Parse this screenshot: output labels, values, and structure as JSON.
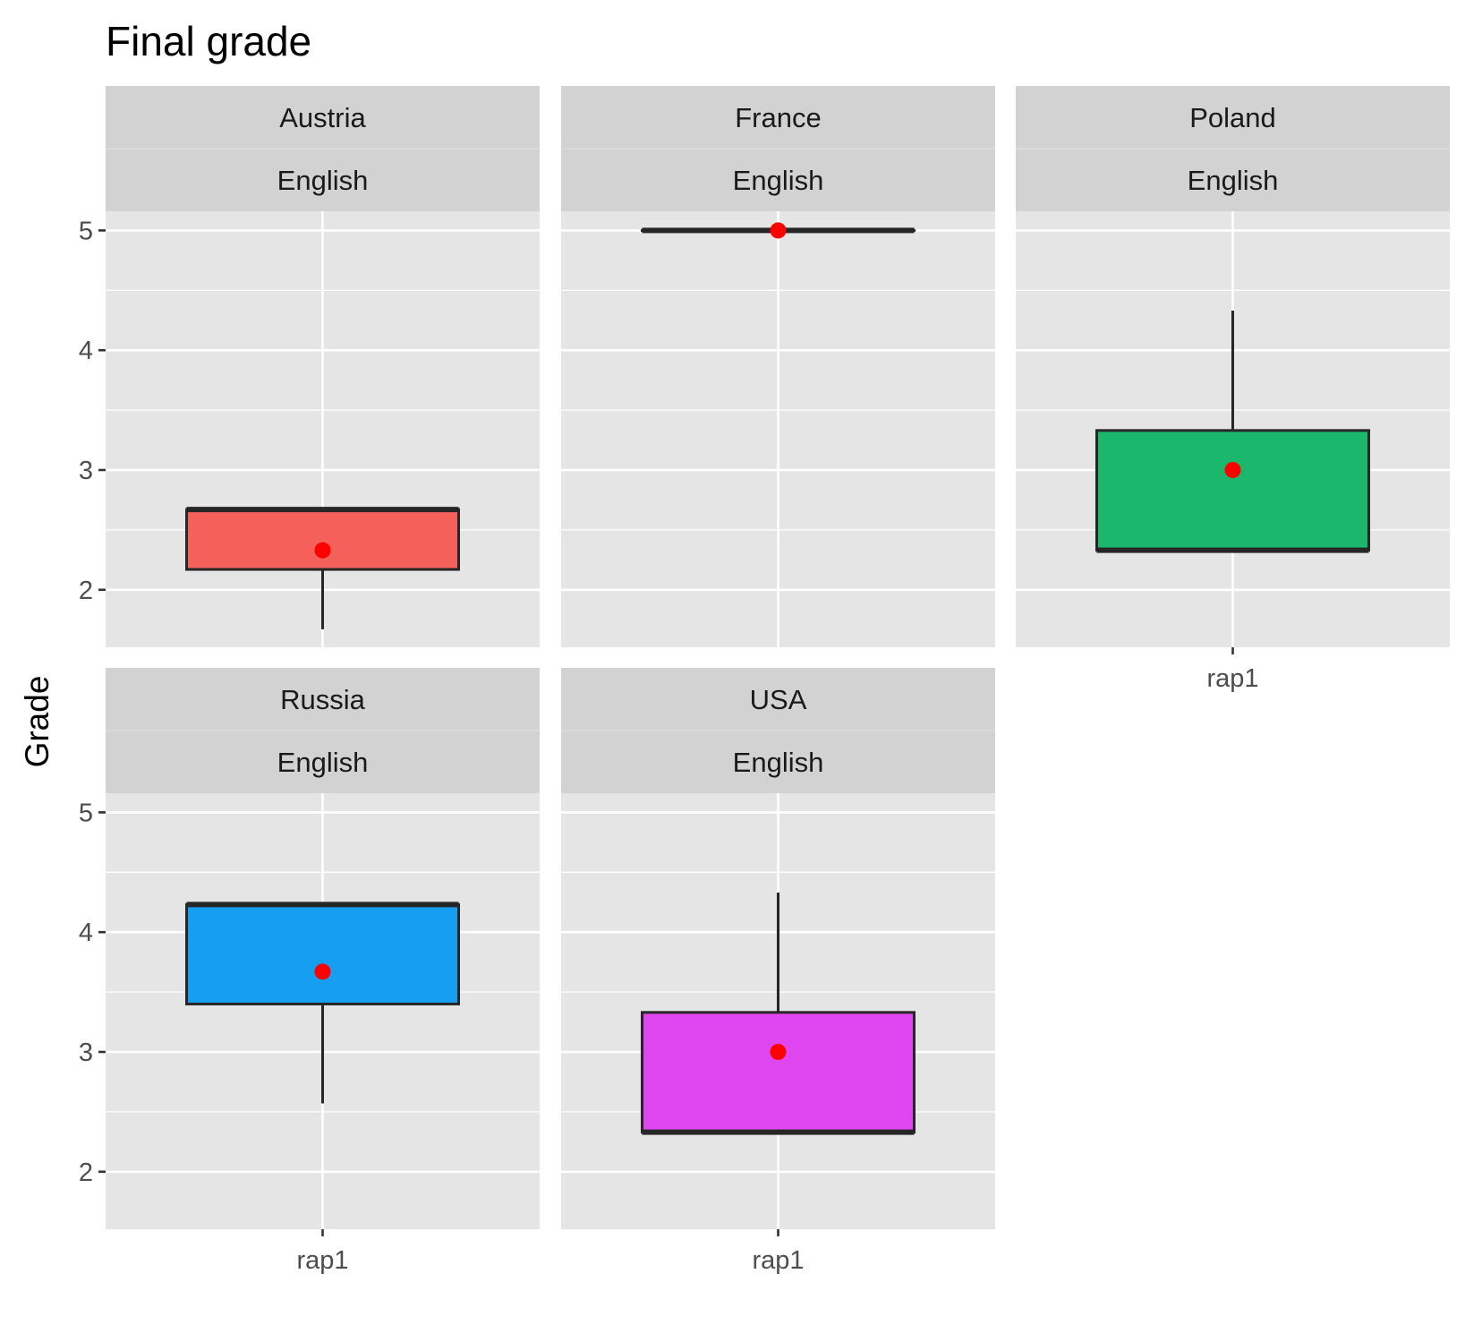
{
  "chart_data": {
    "type": "box",
    "title": "Final grade",
    "ylabel": "Grade",
    "xlabel": "",
    "ylim": [
      1.52,
      5.16
    ],
    "yticks": [
      2,
      3,
      4,
      5
    ],
    "x_category": "rap1",
    "colors": {
      "panel_bg": "#e5e5e5",
      "grid": "#ffffff",
      "strip_bg": "#d2d2d2",
      "mean_point": "#ff0000",
      "box_outline": "#262626"
    },
    "panels": [
      {
        "country": "Austria",
        "language": "English",
        "fill": "#f5605a",
        "box": {
          "min": 1.67,
          "q1": 2.17,
          "median": 2.67,
          "q3": 2.67,
          "max": 2.67
        },
        "mean": 2.33,
        "show_x_axis": false
      },
      {
        "country": "France",
        "language": "English",
        "fill": "#ffffff",
        "box": {
          "min": 5.0,
          "q1": 5.0,
          "median": 5.0,
          "q3": 5.0,
          "max": 5.0
        },
        "mean": 5.0,
        "show_x_axis": false
      },
      {
        "country": "Poland",
        "language": "English",
        "fill": "#1ab76c",
        "box": {
          "min": 2.33,
          "q1": 2.33,
          "median": 2.33,
          "q3": 3.33,
          "max": 4.33
        },
        "mean": 3.0,
        "show_x_axis": true
      },
      {
        "country": "Russia",
        "language": "English",
        "fill": "#169ff0",
        "box": {
          "min": 2.57,
          "q1": 3.4,
          "median": 4.23,
          "q3": 4.23,
          "max": 4.23
        },
        "mean": 3.67,
        "show_x_axis": true
      },
      {
        "country": "USA",
        "language": "English",
        "fill": "#e046f0",
        "box": {
          "min": 2.33,
          "q1": 2.33,
          "median": 2.33,
          "q3": 3.33,
          "max": 4.33
        },
        "mean": 3.0,
        "show_x_axis": true
      }
    ]
  }
}
